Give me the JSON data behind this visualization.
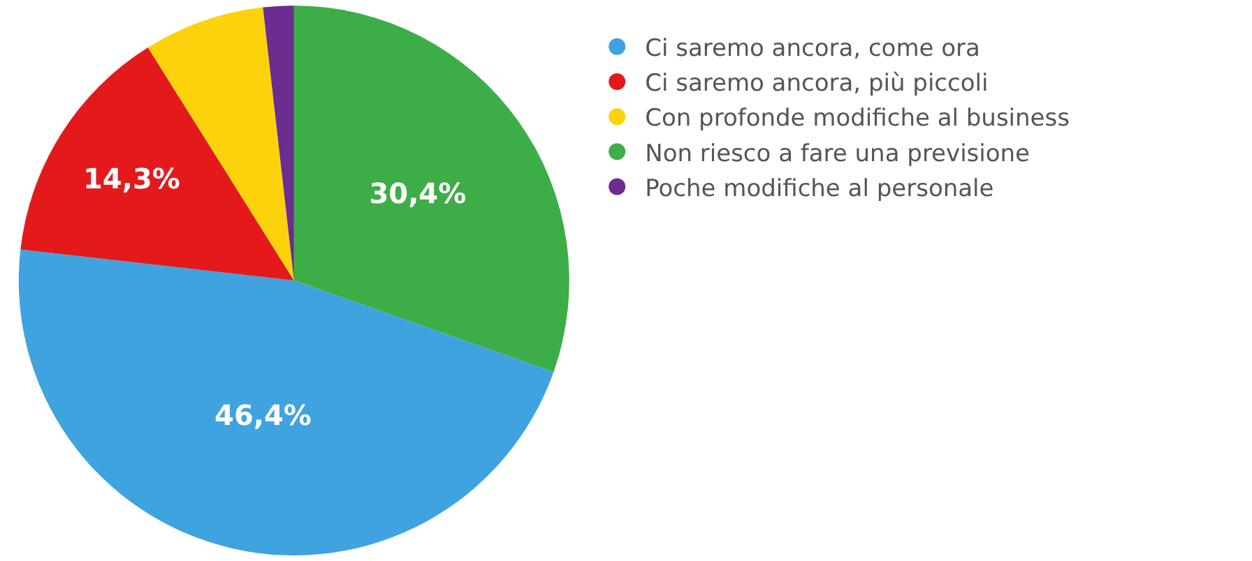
{
  "chart_data": {
    "type": "pie",
    "categories": [
      "Ci saremo ancora, come ora",
      "Ci saremo ancora, più piccoli",
      "Con profonde modifiche al business",
      "Non riesco a fare una previsione",
      "Poche modifiche al personale"
    ],
    "values": [
      46.4,
      14.3,
      7.1,
      30.4,
      1.8
    ],
    "colors": [
      "#3fa3e0",
      "#e3191c",
      "#fcd20c",
      "#3dad48",
      "#6b2d90"
    ],
    "value_labels": [
      "46,4%",
      "14,3%",
      null,
      "30,4%",
      null
    ],
    "legend": "right"
  }
}
